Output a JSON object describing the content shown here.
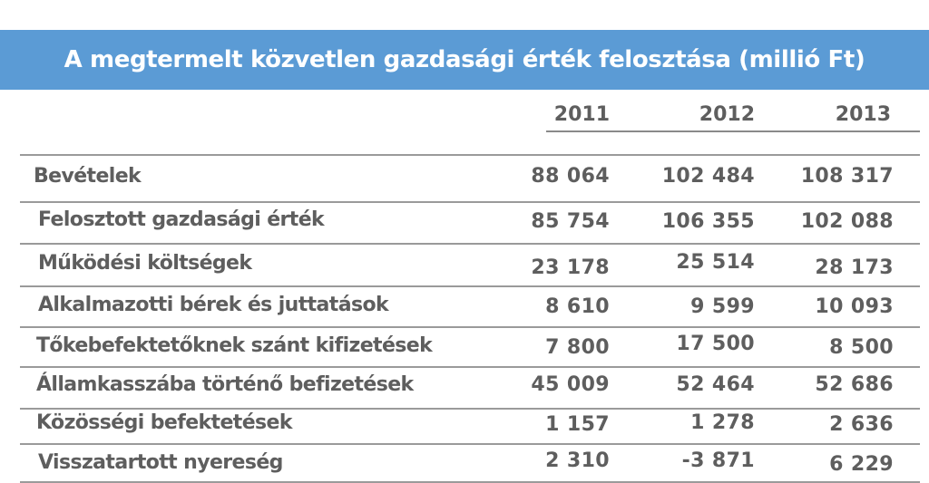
{
  "title": "A megtermelt közvetlen gazdasági érték felosztása (millió Ft)",
  "colors": {
    "title_background": "#5b9bd5",
    "title_text": "#ffffff",
    "text": "#5e5e5e",
    "rules": "#9a9a9a"
  },
  "columns": [
    "2011",
    "2012",
    "2013"
  ],
  "rows": [
    {
      "label": "Bevételek",
      "values": [
        "88 064",
        "102 484",
        "108 317"
      ]
    },
    {
      "label": "Felosztott gazdasági érték",
      "values": [
        "85 754",
        "106 355",
        "102 088"
      ]
    },
    {
      "label": "Működési költségek",
      "values": [
        "23 178",
        "25 514",
        "28 173"
      ]
    },
    {
      "label": "Alkalmazotti bérek és juttatások",
      "values": [
        "8 610",
        "9 599",
        "10 093"
      ]
    },
    {
      "label": "Tőkebefektetőknek szánt kifizetések",
      "values": [
        "7 800",
        "17 500",
        "8 500"
      ]
    },
    {
      "label": "Államkasszába történő befizetések",
      "values": [
        "45 009",
        "52 464",
        "52 686"
      ]
    },
    {
      "label": "Közösségi befektetések",
      "values": [
        "1 157",
        "1 278",
        "2 636"
      ]
    },
    {
      "label": "Visszatartott nyereség",
      "values": [
        "2 310",
        "-3 871",
        "6 229"
      ]
    }
  ]
}
